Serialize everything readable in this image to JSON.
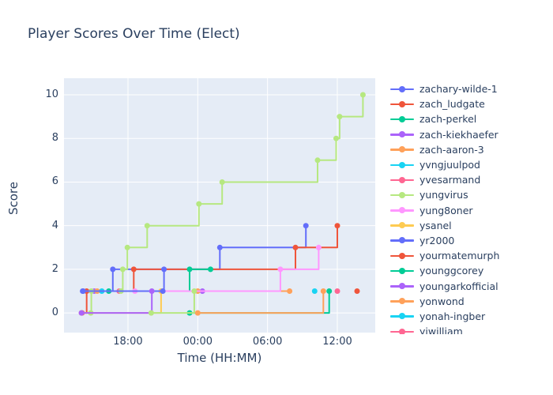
{
  "title": "Player Scores Over Time (Elect)",
  "colors": {
    "font": "#2a3f5f",
    "plot_bg": "#e5ecf6",
    "grid": "#ffffff",
    "paper": "#ffffff"
  },
  "x_axis": {
    "title": "Time (HH:MM)",
    "ticks": [
      {
        "value": 18,
        "label": "18:00"
      },
      {
        "value": 24,
        "label": "00:00"
      },
      {
        "value": 30,
        "label": "06:00"
      },
      {
        "value": 36,
        "label": "12:00"
      }
    ]
  },
  "y_axis": {
    "title": "Score",
    "ticks": [
      0,
      2,
      4,
      6,
      8,
      10
    ]
  },
  "legend": {
    "items": [
      {
        "label": "zachary-wilde-1",
        "color": "#636EFA"
      },
      {
        "label": "zach_ludgate",
        "color": "#EF553B"
      },
      {
        "label": "zach-perkel",
        "color": "#00CC96"
      },
      {
        "label": "zach-kiekhaefer",
        "color": "#AB63FA"
      },
      {
        "label": "zach-aaron-3",
        "color": "#FFA15A"
      },
      {
        "label": "yvngjuulpod",
        "color": "#19D3F3"
      },
      {
        "label": "yvesarmand",
        "color": "#FF6692"
      },
      {
        "label": "yungvirus",
        "color": "#B6E880"
      },
      {
        "label": "yung8oner",
        "color": "#FF97FF"
      },
      {
        "label": "ysanel",
        "color": "#FECB52"
      },
      {
        "label": "yr2000",
        "color": "#636EFA"
      },
      {
        "label": "yourmatemurph",
        "color": "#EF553B"
      },
      {
        "label": "younggcorey",
        "color": "#00CC96"
      },
      {
        "label": "youngarkofficial",
        "color": "#AB63FA"
      },
      {
        "label": "yonwond",
        "color": "#FFA15A"
      },
      {
        "label": "yonah-ingber",
        "color": "#19D3F3"
      },
      {
        "label": "yiwilliam",
        "color": "#FF6692"
      }
    ]
  },
  "chart_data": {
    "type": "line",
    "line_shape": "step-hv",
    "markers": true,
    "title": "Player Scores Over Time (Elect)",
    "xlabel": "Time (HH:MM)",
    "ylabel": "Score",
    "x_unit": "decimal hours of day; values >= 24 are after midnight (next day)",
    "xlim": [
      12.5,
      39.26
    ],
    "ylim": [
      -0.9,
      10.76
    ],
    "grid": true,
    "legend_position": "right",
    "series": [
      {
        "name": "zachary-wilde-1",
        "color": "#636EFA",
        "points": [
          [
            14.1,
            1
          ],
          [
            16.7,
            2
          ],
          [
            25.9,
            3
          ],
          [
            33.3,
            4
          ]
        ]
      },
      {
        "name": "zach_ludgate",
        "color": "#EF553B",
        "points": [
          [
            14.05,
            0
          ],
          [
            14.45,
            1
          ],
          [
            18.5,
            2
          ],
          [
            32.4,
            3
          ],
          [
            36.0,
            4
          ]
        ]
      },
      {
        "name": "zach-perkel",
        "color": "#00CC96",
        "points": [
          [
            16.35,
            1
          ],
          [
            23.3,
            2
          ],
          [
            25.1,
            2
          ]
        ]
      },
      {
        "name": "zach-kiekhaefer",
        "color": "#AB63FA",
        "points": [
          [
            15.1,
            1
          ],
          [
            24.4,
            1
          ]
        ]
      },
      {
        "name": "zach-aaron-3",
        "color": "#FFA15A",
        "points": [
          [
            15.35,
            1
          ],
          [
            24.0,
            1
          ],
          [
            31.9,
            1
          ]
        ]
      },
      {
        "name": "yvngjuulpod",
        "color": "#19D3F3",
        "points": [
          [
            15.75,
            1
          ]
        ]
      },
      {
        "name": "yvesarmand",
        "color": "#FF6692",
        "points": [
          [
            17.25,
            1
          ]
        ]
      },
      {
        "name": "yungvirus",
        "color": "#B6E880",
        "points": [
          [
            14.8,
            0
          ],
          [
            14.85,
            1
          ],
          [
            17.4,
            1
          ],
          [
            17.55,
            2
          ],
          [
            17.95,
            3
          ],
          [
            19.65,
            4
          ],
          [
            24.1,
            5
          ],
          [
            26.1,
            6
          ],
          [
            34.3,
            7
          ],
          [
            35.9,
            8
          ],
          [
            36.2,
            9
          ],
          [
            38.2,
            10
          ]
        ]
      },
      {
        "name": "yung8oner",
        "color": "#FF97FF",
        "points": [
          [
            18.6,
            1
          ],
          [
            31.1,
            2
          ],
          [
            34.4,
            3
          ]
        ]
      },
      {
        "name": "ysanel",
        "color": "#FECB52",
        "points": [
          [
            14.0,
            0
          ],
          [
            20.85,
            1
          ]
        ]
      },
      {
        "name": "yr2000",
        "color": "#636EFA",
        "points": [
          [
            14.15,
            1
          ],
          [
            21.0,
            1
          ],
          [
            21.1,
            2
          ]
        ]
      },
      {
        "name": "yourmatemurph",
        "color": "#EF553B",
        "points": [
          [
            37.7,
            1
          ]
        ]
      },
      {
        "name": "younggcorey",
        "color": "#00CC96",
        "points": [
          [
            23.3,
            0
          ],
          [
            35.3,
            1
          ]
        ]
      },
      {
        "name": "youngarkofficial",
        "color": "#AB63FA",
        "points": [
          [
            14.0,
            0
          ],
          [
            20.05,
            1
          ]
        ]
      },
      {
        "name": "yonwond",
        "color": "#FFA15A",
        "points": [
          [
            24.0,
            0
          ],
          [
            34.8,
            1
          ]
        ]
      },
      {
        "name": "yonah-ingber",
        "color": "#19D3F3",
        "points": [
          [
            34.05,
            1
          ]
        ]
      },
      {
        "name": "yiwilliam",
        "color": "#FF6692",
        "points": [
          [
            36.0,
            1
          ]
        ]
      },
      {
        "name": "",
        "color": "#B6E880",
        "points": [
          [
            20.0,
            0
          ],
          [
            23.7,
            1
          ]
        ],
        "note": "legend entry clipped below visible area"
      }
    ]
  }
}
